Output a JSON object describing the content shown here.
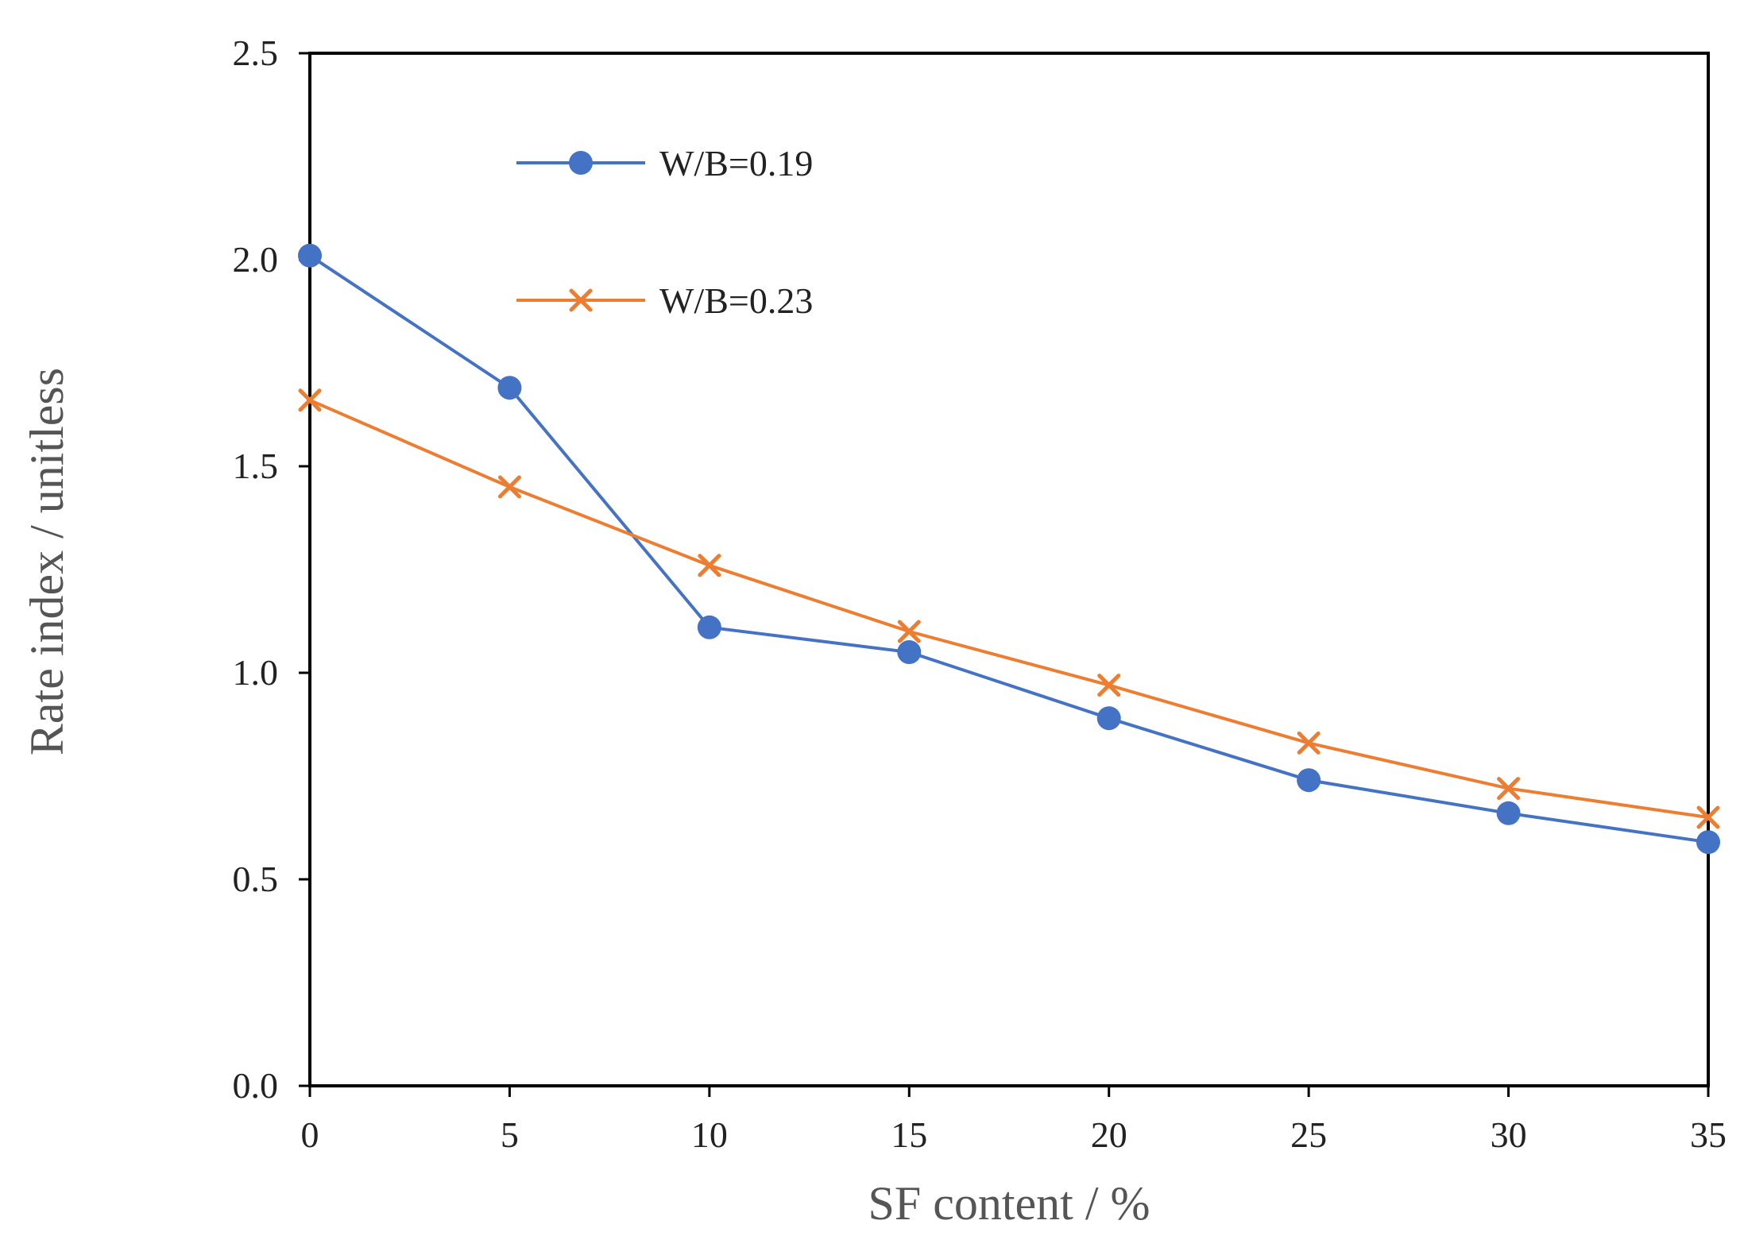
{
  "chart_data": {
    "type": "line",
    "title": "",
    "xlabel": "SF content / %",
    "ylabel": "Rate index / unitless",
    "x": [
      0,
      5,
      10,
      15,
      20,
      25,
      30,
      35
    ],
    "xlim": [
      0,
      35
    ],
    "ylim": [
      0.0,
      2.5
    ],
    "x_ticks": [
      "0",
      "5",
      "10",
      "15",
      "20",
      "25",
      "30",
      "35"
    ],
    "y_ticks": [
      "0.0",
      "0.5",
      "1.0",
      "1.5",
      "2.0",
      "2.5"
    ],
    "grid": false,
    "legend_position": "top-left",
    "series": [
      {
        "name": "W/B=0.19",
        "marker": "circle",
        "color": "#4472C4",
        "values": [
          2.01,
          1.69,
          1.11,
          1.05,
          0.89,
          0.74,
          0.66,
          0.59
        ]
      },
      {
        "name": "W/B=0.23",
        "marker": "cross",
        "color": "#ED7D31",
        "values": [
          1.66,
          1.45,
          1.26,
          1.1,
          0.97,
          0.83,
          0.72,
          0.65
        ]
      }
    ]
  }
}
